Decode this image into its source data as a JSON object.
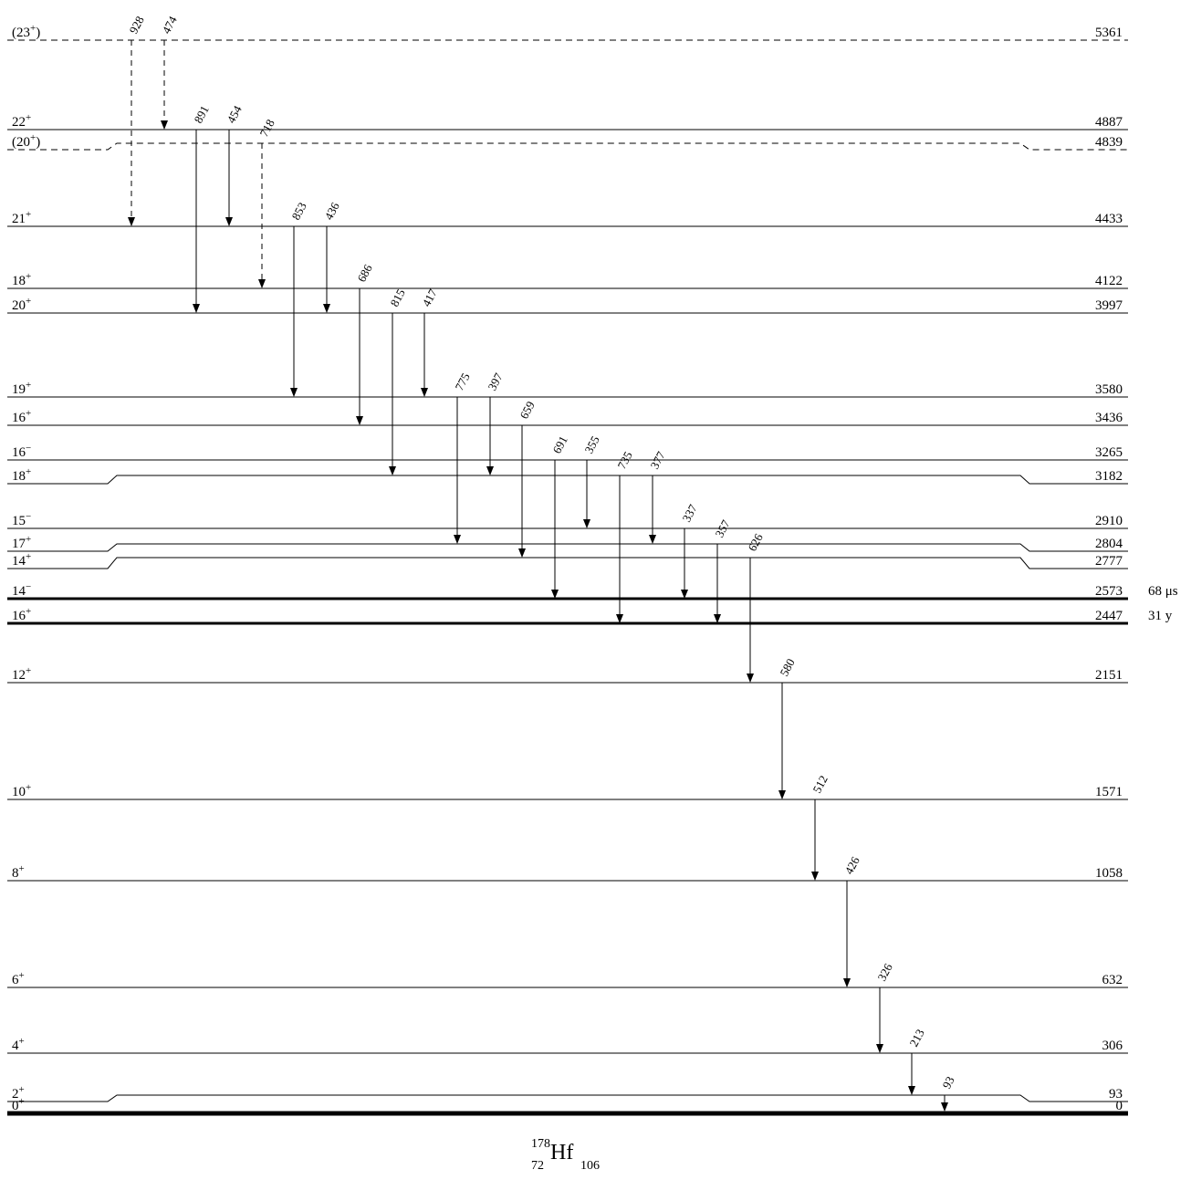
{
  "nuclide": {
    "mass_number": "178",
    "atomic_number": "72",
    "symbol": "Hf",
    "neutron_number": "106"
  },
  "levels": [
    {
      "id": "L5361",
      "spin": "(23",
      "parity": "+",
      "spin_close": ")",
      "energy": "5361",
      "style": "dashed"
    },
    {
      "id": "L4887",
      "spin": "22",
      "parity": "+",
      "spin_close": "",
      "energy": "4887",
      "style": "solid"
    },
    {
      "id": "L4839",
      "spin": "(20",
      "parity": "+",
      "spin_close": ")",
      "energy": "4839",
      "style": "dashed"
    },
    {
      "id": "L4433",
      "spin": "21",
      "parity": "+",
      "spin_close": "",
      "energy": "4433",
      "style": "solid"
    },
    {
      "id": "L4122",
      "spin": "18",
      "parity": "+",
      "spin_close": "",
      "energy": "4122",
      "style": "solid"
    },
    {
      "id": "L3997",
      "spin": "20",
      "parity": "+",
      "spin_close": "",
      "energy": "3997",
      "style": "solid"
    },
    {
      "id": "L3580",
      "spin": "19",
      "parity": "+",
      "spin_close": "",
      "energy": "3580",
      "style": "solid"
    },
    {
      "id": "L3436",
      "spin": "16",
      "parity": "+",
      "spin_close": "",
      "energy": "3436",
      "style": "solid"
    },
    {
      "id": "L3265",
      "spin": "16",
      "parity": "−",
      "spin_close": "",
      "energy": "3265",
      "style": "solid"
    },
    {
      "id": "L3182",
      "spin": "18",
      "parity": "+",
      "spin_close": "",
      "energy": "3182",
      "style": "solid"
    },
    {
      "id": "L2910",
      "spin": "15",
      "parity": "−",
      "spin_close": "",
      "energy": "2910",
      "style": "solid"
    },
    {
      "id": "L2804",
      "spin": "17",
      "parity": "+",
      "spin_close": "",
      "energy": "2804",
      "style": "solid"
    },
    {
      "id": "L2777",
      "spin": "14",
      "parity": "+",
      "spin_close": "",
      "energy": "2777",
      "style": "solid"
    },
    {
      "id": "L2573",
      "spin": "14",
      "parity": "−",
      "spin_close": "",
      "energy": "2573",
      "style": "isomer",
      "half_life": "68 μs"
    },
    {
      "id": "L2447",
      "spin": "16",
      "parity": "+",
      "spin_close": "",
      "energy": "2447",
      "style": "isomer",
      "half_life": "31 y"
    },
    {
      "id": "L2151",
      "spin": "12",
      "parity": "+",
      "spin_close": "",
      "energy": "2151",
      "style": "solid"
    },
    {
      "id": "L1571",
      "spin": "10",
      "parity": "+",
      "spin_close": "",
      "energy": "1571",
      "style": "solid"
    },
    {
      "id": "L1058",
      "spin": "8",
      "parity": "+",
      "spin_close": "",
      "energy": "1058",
      "style": "solid"
    },
    {
      "id": "L632",
      "spin": "6",
      "parity": "+",
      "spin_close": "",
      "energy": "632",
      "style": "solid"
    },
    {
      "id": "L306",
      "spin": "4",
      "parity": "+",
      "spin_close": "",
      "energy": "306",
      "style": "solid"
    },
    {
      "id": "L93",
      "spin": "2",
      "parity": "+",
      "spin_close": "",
      "energy": "93",
      "style": "solid"
    },
    {
      "id": "L0",
      "spin": "0",
      "parity": "+",
      "spin_close": "",
      "energy": "0",
      "style": "ground"
    }
  ],
  "transitions": [
    {
      "energy": "928",
      "from": "5361",
      "to": "4433",
      "style": "dashed"
    },
    {
      "energy": "474",
      "from": "5361",
      "to": "4887",
      "style": "dashed"
    },
    {
      "energy": "891",
      "from": "4887",
      "to": "3997",
      "style": "solid"
    },
    {
      "energy": "454",
      "from": "4887",
      "to": "4433",
      "style": "solid"
    },
    {
      "energy": "718",
      "from": "4839",
      "to": "4122",
      "style": "dashed"
    },
    {
      "energy": "853",
      "from": "4433",
      "to": "3580",
      "style": "solid"
    },
    {
      "energy": "436",
      "from": "4433",
      "to": "3997",
      "style": "solid"
    },
    {
      "energy": "686",
      "from": "4122",
      "to": "3436",
      "style": "solid"
    },
    {
      "energy": "815",
      "from": "3997",
      "to": "3182",
      "style": "solid"
    },
    {
      "energy": "417",
      "from": "3997",
      "to": "3580",
      "style": "solid"
    },
    {
      "energy": "775",
      "from": "3580",
      "to": "2804",
      "style": "solid"
    },
    {
      "energy": "397",
      "from": "3580",
      "to": "3182",
      "style": "solid"
    },
    {
      "energy": "659",
      "from": "3436",
      "to": "2777",
      "style": "solid"
    },
    {
      "energy": "691",
      "from": "3265",
      "to": "2573",
      "style": "solid"
    },
    {
      "energy": "355",
      "from": "3265",
      "to": "2910",
      "style": "solid"
    },
    {
      "energy": "735",
      "from": "3182",
      "to": "2447",
      "style": "solid"
    },
    {
      "energy": "377",
      "from": "3182",
      "to": "2804",
      "style": "solid"
    },
    {
      "energy": "337",
      "from": "2910",
      "to": "2573",
      "style": "solid"
    },
    {
      "energy": "357",
      "from": "2804",
      "to": "2447",
      "style": "solid"
    },
    {
      "energy": "626",
      "from": "2777",
      "to": "2151",
      "style": "solid"
    },
    {
      "energy": "580",
      "from": "2151",
      "to": "1571",
      "style": "solid"
    },
    {
      "energy": "512",
      "from": "1571",
      "to": "1058",
      "style": "solid"
    },
    {
      "energy": "426",
      "from": "1058",
      "to": "632",
      "style": "solid"
    },
    {
      "energy": "326",
      "from": "632",
      "to": "306",
      "style": "solid"
    },
    {
      "energy": "213",
      "from": "306",
      "to": "93",
      "style": "solid"
    },
    {
      "energy": "93",
      "from": "93",
      "to": "0",
      "style": "solid"
    }
  ]
}
